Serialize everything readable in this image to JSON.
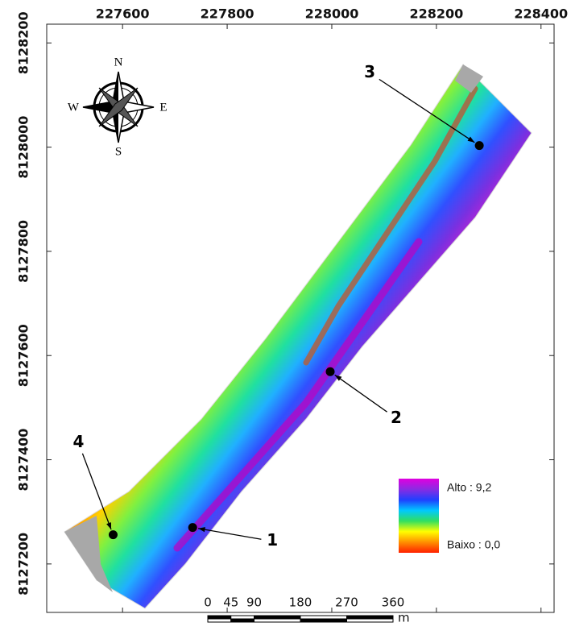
{
  "map": {
    "xlim": [
      227455,
      228425
    ],
    "ylim": [
      8127107,
      8128236
    ],
    "xticks": [
      227600,
      227800,
      228000,
      228200,
      228400
    ],
    "yticks": [
      8127200,
      8127400,
      8127600,
      8127800,
      8128000,
      8128200
    ],
    "compass": {
      "north": "N",
      "south": "S",
      "east": "E",
      "west": "W"
    },
    "points": [
      {
        "label": "1",
        "x": 227734,
        "y": 8127270
      },
      {
        "label": "2",
        "x": 227997,
        "y": 8127569
      },
      {
        "label": "3",
        "x": 228282,
        "y": 8128003
      },
      {
        "label": "4",
        "x": 227582,
        "y": 8127256
      }
    ],
    "legend": {
      "high": "Alto : 9,2",
      "low": "Baixo : 0,0",
      "colors": [
        "#e000e0",
        "#8a2be2",
        "#2040ff",
        "#00c8ff",
        "#30e060",
        "#ffff00",
        "#ff9000",
        "#ff2000"
      ]
    },
    "scale_bar": {
      "ticks": [
        0,
        45,
        90,
        180,
        270,
        360
      ],
      "unit": "m"
    }
  }
}
